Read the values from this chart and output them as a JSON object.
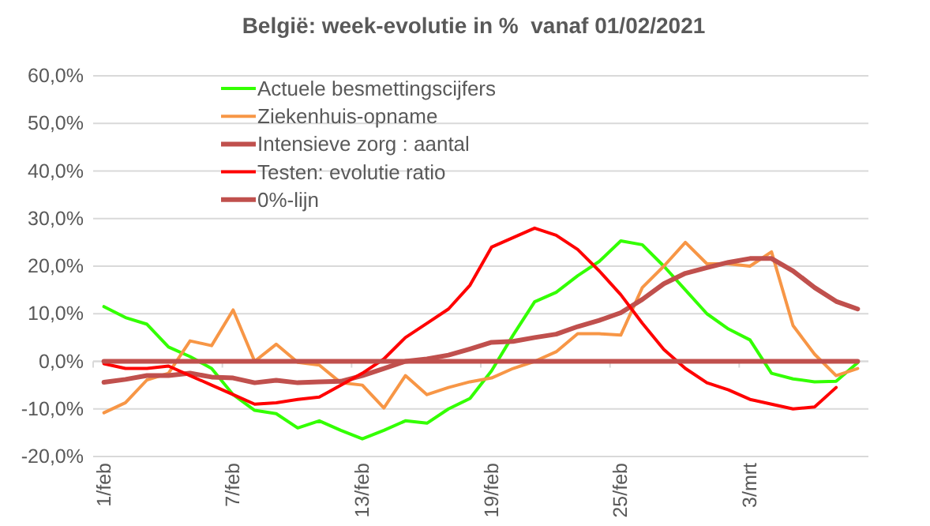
{
  "chart_data": {
    "type": "line",
    "title": "België: week-evolutie in %  vanaf 01/02/2021",
    "categories": [
      "1/feb",
      null,
      null,
      null,
      null,
      null,
      "7/feb",
      null,
      null,
      null,
      null,
      null,
      "13/feb",
      null,
      null,
      null,
      null,
      null,
      "19/feb",
      null,
      null,
      null,
      null,
      null,
      "25/feb",
      null,
      null,
      null,
      null,
      null,
      "3/mrt",
      null,
      null,
      null,
      null,
      null
    ],
    "series": [
      {
        "name": "Actuele besmettingscijfers",
        "color": "#33ff00",
        "values": [
          11.5,
          9.2,
          7.8,
          3.0,
          1.0,
          -1.5,
          -7,
          -10.3,
          -11,
          -14,
          -12.5,
          -14.5,
          -16.3,
          -14.5,
          -12.5,
          -13,
          -10,
          -7.8,
          -2,
          5.5,
          12.5,
          14.5,
          18,
          21,
          25.3,
          24.5,
          20,
          15,
          10,
          6.8,
          4.5,
          -2.5,
          -3.7,
          -4.3,
          -4.2,
          -0.3
        ]
      },
      {
        "name": "Ziekenhuis-opname",
        "color": "#f79646",
        "values": [
          -10.8,
          -8.7,
          -3.9,
          -2.5,
          4.3,
          3.3,
          10.8,
          0,
          3.6,
          -0.2,
          -0.8,
          -4.5,
          -5,
          -9.8,
          -3,
          -7,
          -5.5,
          -4.3,
          -3.5,
          -1.5,
          0,
          2,
          5.8,
          5.8,
          5.5,
          15.5,
          20,
          25,
          20.5,
          20.5,
          20,
          23,
          7.5,
          1.5,
          -3,
          -1.5
        ]
      },
      {
        "name": "Intensieve zorg : aantal",
        "color": "#c0504d",
        "values": [
          -4.4,
          -3.8,
          -3,
          -3,
          -2.5,
          -3.3,
          -3.5,
          -4.5,
          -4,
          -4.5,
          -4.3,
          -4.2,
          -3,
          -1.5,
          0,
          0.5,
          1.3,
          2.6,
          4,
          4.2,
          5,
          5.7,
          7.3,
          8.6,
          10.2,
          13,
          16.3,
          18.5,
          19.7,
          20.8,
          21.6,
          21.6,
          19,
          15.5,
          12.6,
          11
        ]
      },
      {
        "name": "Testen: evolutie ratio",
        "color": "#ff0000",
        "values": [
          -0.5,
          -1.5,
          -1.5,
          -1,
          -3,
          -5,
          -7,
          -9,
          -8.7,
          -8,
          -7.5,
          -5,
          -2.5,
          0.5,
          5,
          8,
          11,
          16,
          24,
          26,
          28,
          26.5,
          23.5,
          19,
          14,
          8,
          2.5,
          -1.5,
          -4.5,
          -6,
          -8,
          -9,
          -10,
          -9.6,
          -5.5,
          null
        ]
      },
      {
        "name": "0%-lijn",
        "color": "#c0504d",
        "values": [
          0,
          0,
          0,
          0,
          0,
          0,
          0,
          0,
          0,
          0,
          0,
          0,
          0,
          0,
          0,
          0,
          0,
          0,
          0,
          0,
          0,
          0,
          0,
          0,
          0,
          0,
          0,
          0,
          0,
          0,
          0,
          0,
          0,
          0,
          0,
          0
        ]
      }
    ],
    "ylim": [
      -20,
      60
    ],
    "yticks": [
      {
        "value": -20,
        "label": "-20,0%"
      },
      {
        "value": -10,
        "label": "-10,0%"
      },
      {
        "value": 0,
        "label": "0,0%"
      },
      {
        "value": 10,
        "label": "10,0%"
      },
      {
        "value": 20,
        "label": "20,0%"
      },
      {
        "value": 30,
        "label": "30,0%"
      },
      {
        "value": 40,
        "label": "40,0%"
      },
      {
        "value": 50,
        "label": "50,0%"
      },
      {
        "value": 60,
        "label": "60,0%"
      }
    ],
    "grid": "y",
    "legend": "top",
    "marker": "none",
    "line_style": "solid"
  }
}
